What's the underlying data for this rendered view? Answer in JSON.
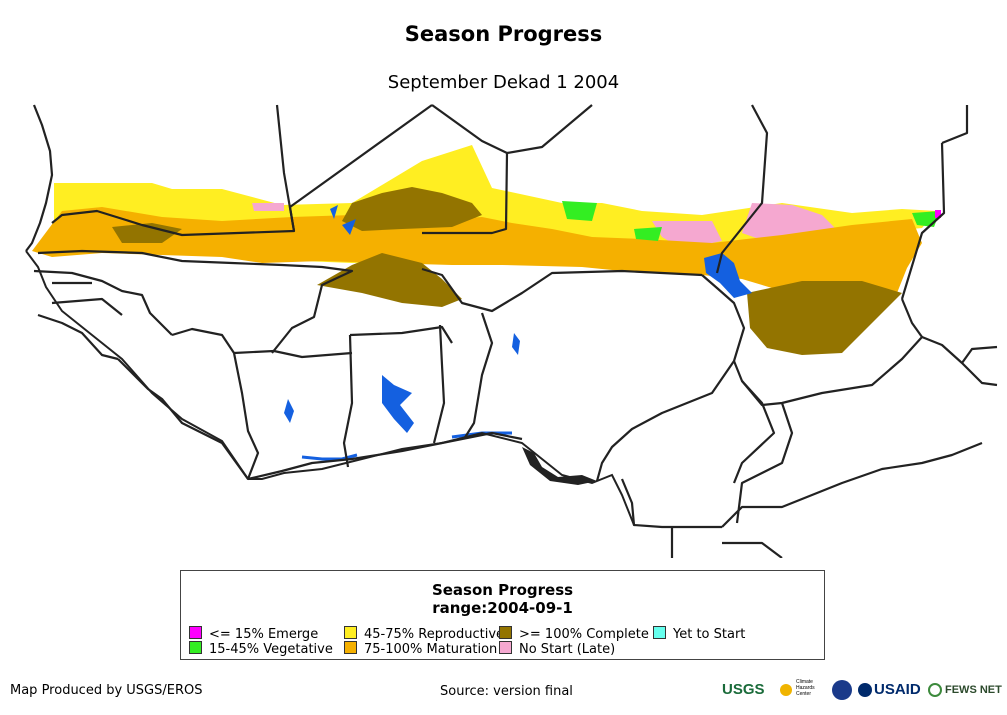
{
  "map": {
    "title": "Season Progress",
    "subtitle": "September Dekad 1 2004"
  },
  "legend": {
    "title": "Season Progress",
    "range": "range:2004-09-1",
    "items": [
      {
        "label": "<= 15% Emerge",
        "color": "#ff00ff"
      },
      {
        "label": "15-45% Vegetative",
        "color": "#33ee22"
      },
      {
        "label": "45-75% Reproductive",
        "color": "#ffee22"
      },
      {
        "label": "75-100% Maturation",
        "color": "#f5b000"
      },
      {
        "label": ">= 100% Complete",
        "color": "#937400"
      },
      {
        "label": "No Start (Late)",
        "color": "#f5a8d0"
      },
      {
        "label": "Yet to Start",
        "color": "#66ffee"
      }
    ],
    "water_color": "#1460e0"
  },
  "footer": {
    "produced_by": "Map Produced by USGS/EROS",
    "source": "Source: version final"
  },
  "logos": {
    "usgs": "USGS",
    "climate": [
      "Climate",
      "Hazards",
      "Center"
    ],
    "usaid": "USAID",
    "fewsnet": "FEWS NET"
  }
}
